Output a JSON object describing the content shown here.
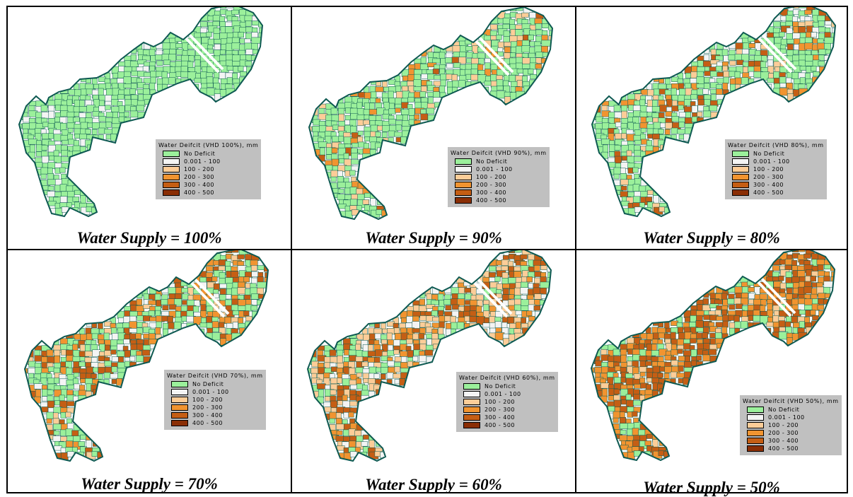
{
  "colors": {
    "no_deficit": "#9bf09b",
    "d0_100": "#f4f4f4",
    "d100_200": "#fccd98",
    "d200_300": "#f19430",
    "d300_400": "#c55e14",
    "d400_500": "#8a2e05",
    "outline": "#0e5a52"
  },
  "legend_classes": [
    {
      "key": "no_deficit",
      "label": "No Deficit"
    },
    {
      "key": "d0_100",
      "label": "0.001 - 100"
    },
    {
      "key": "d100_200",
      "label": "100 - 200"
    },
    {
      "key": "d200_300",
      "label": "200 - 300"
    },
    {
      "key": "d300_400",
      "label": "300 - 400"
    },
    {
      "key": "d400_500",
      "label": "400 - 500"
    }
  ],
  "panels": [
    {
      "caption": "Water Supply = 100%",
      "legend_title": "Water Deifcit (VHD 100%), mm",
      "shares": {
        "no_deficit": 0.93,
        "d0_100": 0.07,
        "d100_200": 0,
        "d200_300": 0,
        "d300_400": 0,
        "d400_500": 0
      }
    },
    {
      "caption": "Water Supply = 90%",
      "legend_title": "Water Deifcit (VHD 90%), mm",
      "shares": {
        "no_deficit": 0.7,
        "d0_100": 0.06,
        "d100_200": 0.12,
        "d200_300": 0.08,
        "d300_400": 0.04,
        "d400_500": 0
      }
    },
    {
      "caption": "Water Supply = 80%",
      "legend_title": "Water Deifcit (VHD 80%), mm",
      "shares": {
        "no_deficit": 0.55,
        "d0_100": 0.12,
        "d100_200": 0.1,
        "d200_300": 0.1,
        "d300_400": 0.13,
        "d400_500": 0
      }
    },
    {
      "caption": "Water Supply = 70%",
      "legend_title": "Water Deifcit (VHD 70%), mm",
      "shares": {
        "no_deficit": 0.4,
        "d0_100": 0.08,
        "d100_200": 0.07,
        "d200_300": 0.2,
        "d300_400": 0.25,
        "d400_500": 0
      }
    },
    {
      "caption": "Water Supply = 60%",
      "legend_title": "Water Deifcit (VHD 60%), mm",
      "shares": {
        "no_deficit": 0.18,
        "d0_100": 0.1,
        "d100_200": 0.3,
        "d200_300": 0.17,
        "d300_400": 0.25,
        "d400_500": 0
      }
    },
    {
      "caption": "Water Supply = 50%",
      "legend_title": "Water Deifcit (VHD 50%), mm",
      "shares": {
        "no_deficit": 0.15,
        "d0_100": 0.02,
        "d100_200": 0.08,
        "d200_300": 0.3,
        "d300_400": 0.45,
        "d400_500": 0
      }
    }
  ]
}
